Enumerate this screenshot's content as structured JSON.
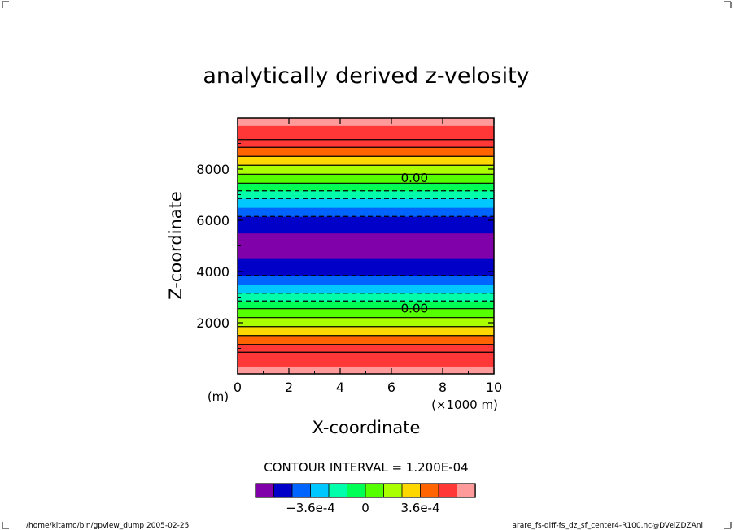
{
  "chart_data": {
    "type": "heatmap",
    "title": "analytically derived z-velosity",
    "xlabel": "X-coordinate",
    "ylabel": "Z-coordinate",
    "x_unit_left": "(m)",
    "x_unit_right": "(×1000 m)",
    "xlim": [
      0,
      10
    ],
    "ylim": [
      0,
      10000
    ],
    "x_ticks": [
      "0",
      "2",
      "4",
      "6",
      "8",
      "10"
    ],
    "x_tick_values": [
      0,
      2,
      4,
      6,
      8,
      10
    ],
    "y_ticks": [
      "2000",
      "4000",
      "6000",
      "8000"
    ],
    "y_tick_values": [
      2000,
      4000,
      6000,
      8000
    ],
    "contour_interval_label": "CONTOUR INTERVAL = 1.200E-04",
    "contour_labels": [
      {
        "text": "0.00",
        "x": 6.9,
        "z": 7650
      },
      {
        "text": "0.00",
        "x": 6.9,
        "z": 2550
      }
    ],
    "bands": [
      {
        "z0": 0,
        "z1": 300,
        "color": "#ff9a9a"
      },
      {
        "z0": 300,
        "z1": 850,
        "color": "#ff3737"
      },
      {
        "z0": 850,
        "z1": 1150,
        "color": "#ff3737"
      },
      {
        "z0": 1150,
        "z1": 1500,
        "color": "#ff6400"
      },
      {
        "z0": 1500,
        "z1": 1850,
        "color": "#ffd700"
      },
      {
        "z0": 1850,
        "z1": 2200,
        "color": "#aaff00"
      },
      {
        "z0": 2200,
        "z1": 2550,
        "color": "#55ff00"
      },
      {
        "z0": 2550,
        "z1": 2850,
        "color": "#00ff55"
      },
      {
        "z0": 2850,
        "z1": 3150,
        "color": "#00ffaa"
      },
      {
        "z0": 3150,
        "z1": 3500,
        "color": "#00c8ff"
      },
      {
        "z0": 3500,
        "z1": 3850,
        "color": "#0064ff"
      },
      {
        "z0": 3850,
        "z1": 4500,
        "color": "#0000c8"
      },
      {
        "z0": 4500,
        "z1": 5500,
        "color": "#8000aa"
      },
      {
        "z0": 5500,
        "z1": 6150,
        "color": "#0000c8"
      },
      {
        "z0": 6150,
        "z1": 6500,
        "color": "#0064ff"
      },
      {
        "z0": 6500,
        "z1": 6850,
        "color": "#00c8ff"
      },
      {
        "z0": 6850,
        "z1": 7150,
        "color": "#00ffaa"
      },
      {
        "z0": 7150,
        "z1": 7450,
        "color": "#00ff55"
      },
      {
        "z0": 7450,
        "z1": 7800,
        "color": "#55ff00"
      },
      {
        "z0": 7800,
        "z1": 8150,
        "color": "#aaff00"
      },
      {
        "z0": 8150,
        "z1": 8500,
        "color": "#ffd700"
      },
      {
        "z0": 8500,
        "z1": 8850,
        "color": "#ff6400"
      },
      {
        "z0": 8850,
        "z1": 9150,
        "color": "#ff3737"
      },
      {
        "z0": 9150,
        "z1": 9700,
        "color": "#ff3737"
      },
      {
        "z0": 9700,
        "z1": 10000,
        "color": "#ff9a9a"
      }
    ],
    "contour_lines": [
      {
        "z": 850,
        "dashed": false
      },
      {
        "z": 1150,
        "dashed": false
      },
      {
        "z": 1500,
        "dashed": false
      },
      {
        "z": 1850,
        "dashed": false
      },
      {
        "z": 2200,
        "dashed": false
      },
      {
        "z": 2550,
        "dashed": false
      },
      {
        "z": 2850,
        "dashed": true
      },
      {
        "z": 3150,
        "dashed": true
      },
      {
        "z": 3850,
        "dashed": true
      },
      {
        "z": 6150,
        "dashed": true
      },
      {
        "z": 6850,
        "dashed": true
      },
      {
        "z": 7150,
        "dashed": true
      },
      {
        "z": 7450,
        "dashed": false
      },
      {
        "z": 7800,
        "dashed": false
      },
      {
        "z": 8150,
        "dashed": false
      },
      {
        "z": 8500,
        "dashed": false
      },
      {
        "z": 8850,
        "dashed": false
      },
      {
        "z": 9150,
        "dashed": false
      }
    ],
    "colorbar": {
      "colors": [
        "#8000aa",
        "#0000c8",
        "#0064ff",
        "#00c8ff",
        "#00ffaa",
        "#00ff55",
        "#55ff00",
        "#aaff00",
        "#ffd700",
        "#ff6400",
        "#ff3737",
        "#ff9a9a"
      ],
      "labels": [
        {
          "text": "−3.6e-4",
          "index": 3
        },
        {
          "text": "0",
          "index": 6
        },
        {
          "text": "3.6e-4",
          "index": 9
        }
      ]
    }
  },
  "footer": {
    "left": "/home/kitamo/bin/gpview_dump  2005-02-25",
    "right": "arare_fs-diff-fs_dz_sf_center4-R100.nc@DVelZDZAnl"
  }
}
